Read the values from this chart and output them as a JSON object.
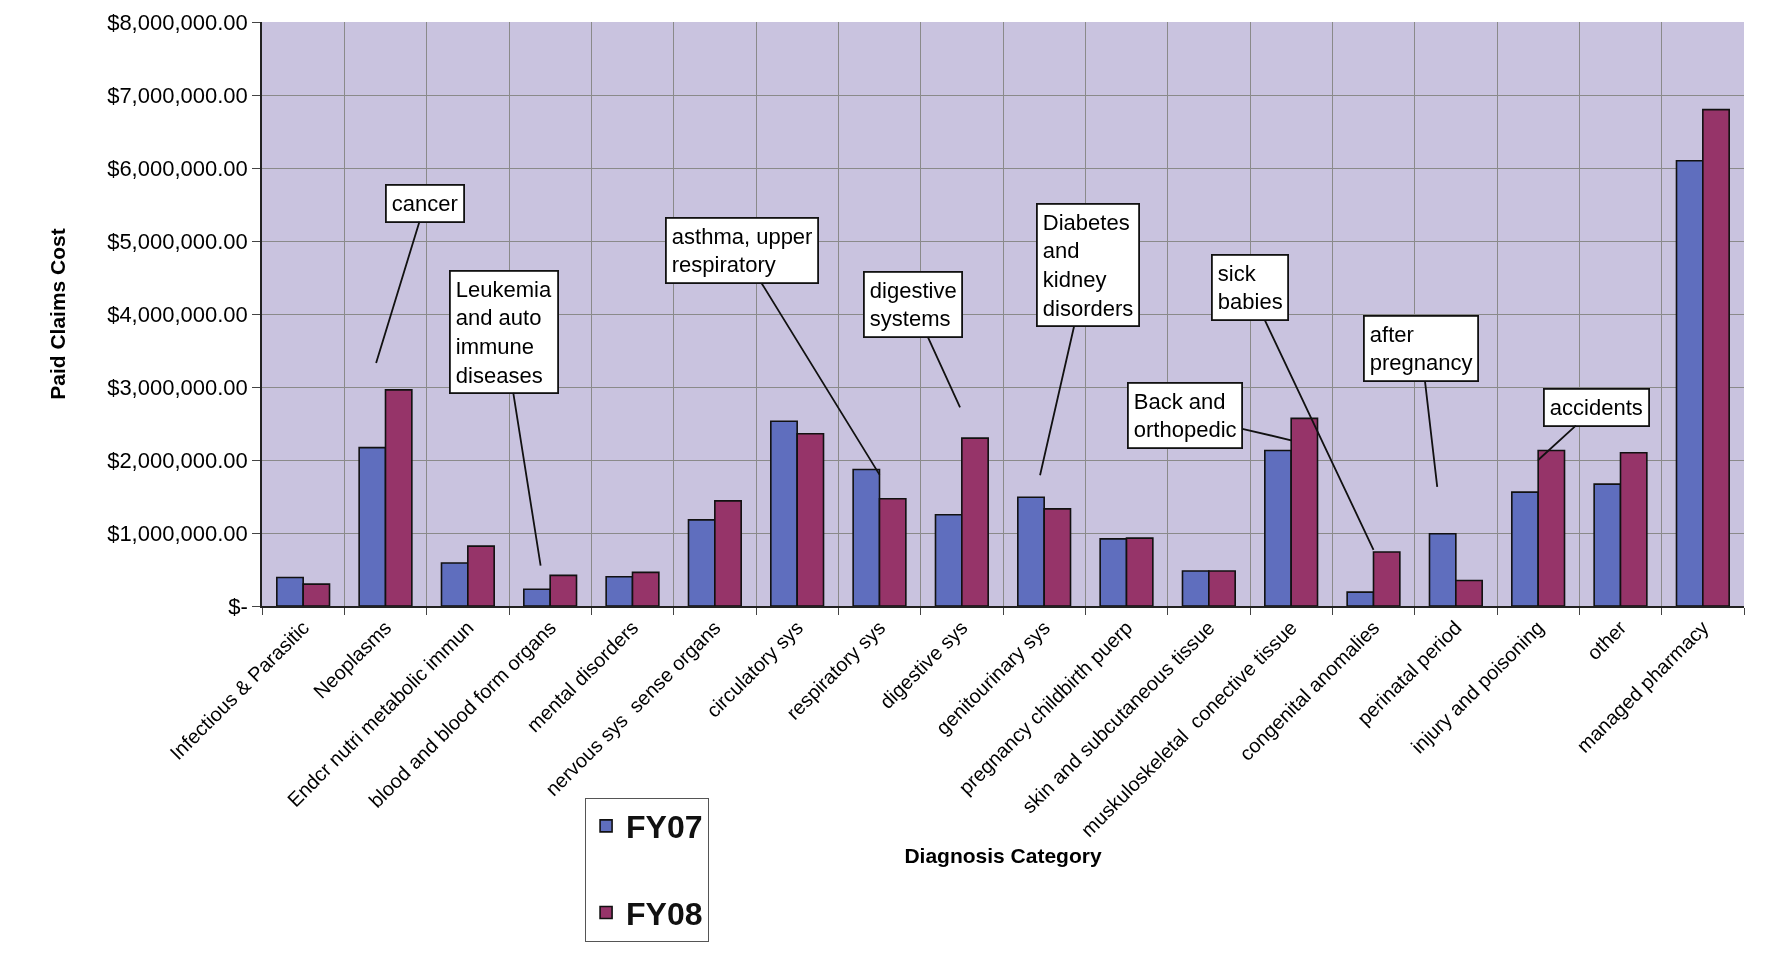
{
  "chart_data": {
    "type": "bar",
    "xlabel": "Diagnosis Category",
    "ylabel": "Paid Claims Cost",
    "categories": [
      "Infectious & Parasitic",
      "Neoplasms",
      "Endcr nutri metabolic immun",
      "blood and blood form organs",
      "mental disorders",
      "nervous sys  sense organs",
      "circulatory sys",
      "respiratory sys",
      "digestive sys",
      "genitourinary sys",
      "pregnancy childbirth puerp",
      "skin and subcutaneous tissue",
      "muskuloskeletal  conective tissue",
      "congenital anomalies",
      "perinatal period",
      "injury and poisoning",
      "other",
      "managed pharmacy"
    ],
    "series": [
      {
        "name": "FY07",
        "color": "#5f6ebe",
        "values": [
          390000,
          2170000,
          590000,
          230000,
          400000,
          1180000,
          2530000,
          1870000,
          1250000,
          1490000,
          920000,
          480000,
          2130000,
          190000,
          990000,
          1560000,
          1670000,
          6100000
        ]
      },
      {
        "name": "FY08",
        "color": "#963469",
        "values": [
          300000,
          2960000,
          820000,
          420000,
          460000,
          1440000,
          2360000,
          1470000,
          2300000,
          1330000,
          930000,
          480000,
          2570000,
          740000,
          350000,
          2130000,
          2100000,
          6800000
        ]
      }
    ],
    "ylim": [
      0,
      8000000
    ],
    "yticks": [
      {
        "value": 0,
        "label": "$-"
      },
      {
        "value": 1000000,
        "label": "$1,000,000.00"
      },
      {
        "value": 2000000,
        "label": "$2,000,000.00"
      },
      {
        "value": 3000000,
        "label": "$3,000,000.00"
      },
      {
        "value": 4000000,
        "label": "$4,000,000.00"
      },
      {
        "value": 5000000,
        "label": "$5,000,000.00"
      },
      {
        "value": 6000000,
        "label": "$6,000,000.00"
      },
      {
        "value": 7000000,
        "label": "$7,000,000.00"
      },
      {
        "value": 8000000,
        "label": "$8,000,000.00"
      }
    ],
    "annotations": [
      "cancer",
      "Leukemia\nand auto\nimmune\ndiseases",
      {
        "text": "asthma, upper\nrespiratory",
        "x": "respiratory sys",
        "y": 1800000
      },
      "digestive\nsystems",
      "Diabetes\nand\nkidney\ndisorders",
      {
        "text": "Back and\northopedic",
        "x": "muskuloskeletal  conective tissue",
        "y": 2270000
      },
      {
        "text": "sick\nbabies",
        "x": "congenital anomalies",
        "y": 770000
      },
      "after\npregnancy",
      {
        "text": "accidents",
        "x": "injury and poisoning",
        "y": 2000000
      }
    ],
    "grid": true,
    "legend": "bottom"
  }
}
